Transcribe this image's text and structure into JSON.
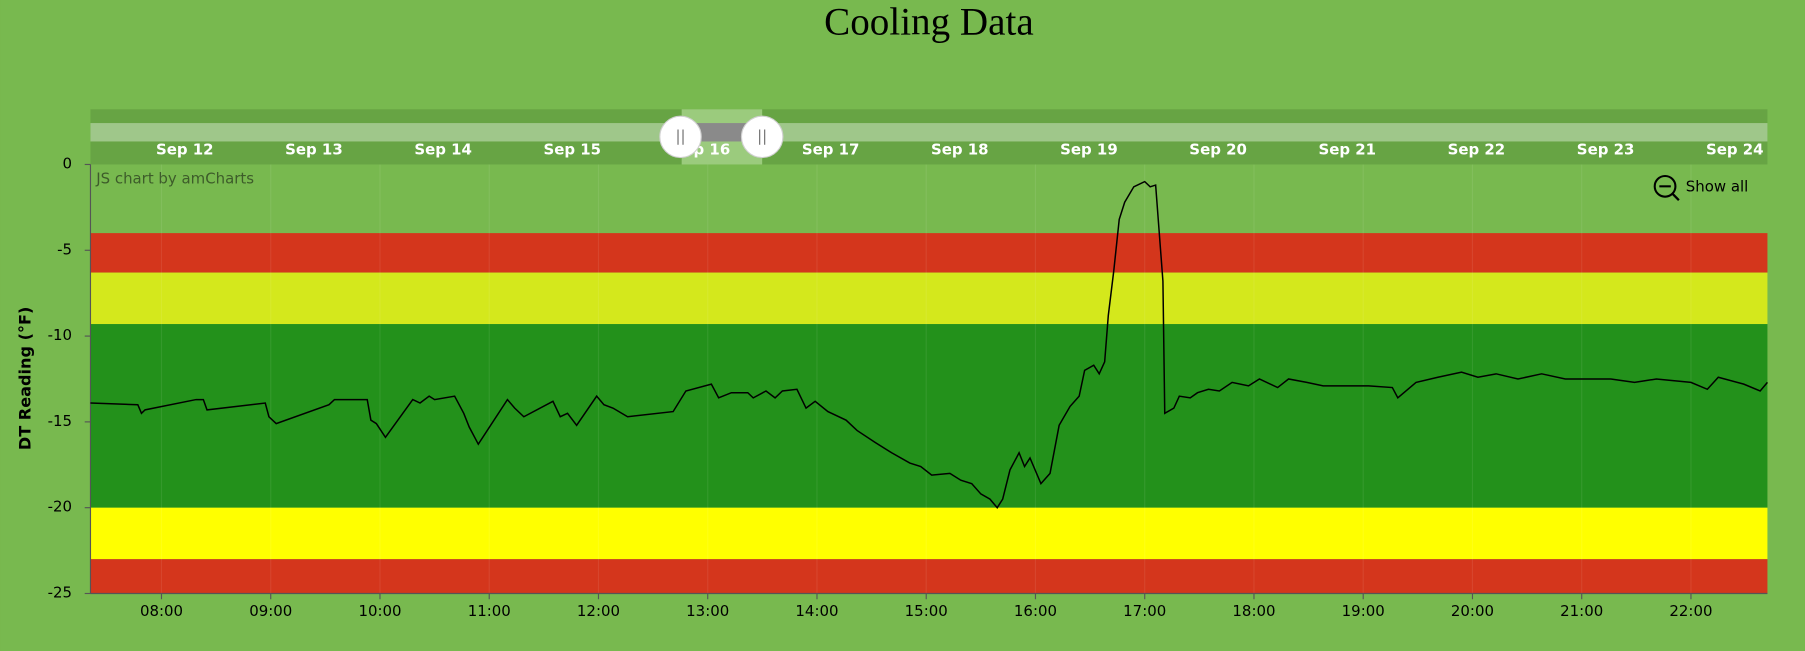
{
  "chart_data": {
    "type": "line",
    "title": "Cooling Data",
    "y_label": "DT Reading (°F)",
    "credit": "JS chart by amCharts",
    "zoom_button": "Show all",
    "scrollbar": {
      "labels": [
        "Sep 12",
        "Sep 13",
        "Sep 14",
        "Sep 15",
        "Sep 16",
        "Sep 17",
        "Sep 18",
        "Sep 19",
        "Sep 20",
        "Sep 21",
        "Sep 22",
        "Sep 23",
        "Sep 24"
      ],
      "handle": "||"
    },
    "color": "#000000",
    "x": [
      "07:21",
      "07:47",
      "07:49",
      "07:51",
      "08:19",
      "08:23",
      "08:25",
      "08:57",
      "08:59",
      "09:03",
      "09:32",
      "09:35",
      "09:53",
      "09:55",
      "09:58",
      "10:03",
      "10:18",
      "10:22",
      "10:27",
      "10:30",
      "10:41",
      "10:46",
      "10:49",
      "10:54",
      "11:10",
      "11:14",
      "11:19",
      "11:35",
      "11:39",
      "11:43",
      "11:48",
      "11:59",
      "12:03",
      "12:08",
      "12:16",
      "12:41",
      "12:48",
      "13:02",
      "13:06",
      "13:13",
      "13:22",
      "13:25",
      "13:32",
      "13:37",
      "13:41",
      "13:49",
      "13:54",
      "13:59",
      "14:06",
      "14:16",
      "14:22",
      "14:32",
      "14:41",
      "14:51",
      "14:57",
      "15:03",
      "15:13",
      "15:19",
      "15:25",
      "15:30",
      "15:35",
      "15:39",
      "15:42",
      "15:46",
      "15:51",
      "15:54",
      "15:57",
      "16:03",
      "16:08",
      "16:13",
      "16:19",
      "16:24",
      "16:27",
      "16:32",
      "16:35",
      "16:38",
      "16:40",
      "16:43",
      "16:46",
      "16:49",
      "16:54",
      "17:00",
      "17:03",
      "17:06",
      "17:10",
      "17:11",
      "17:16",
      "17:19",
      "17:25",
      "17:29",
      "17:35",
      "17:41",
      "17:48",
      "17:57",
      "18:03",
      "18:13",
      "18:19",
      "18:29",
      "18:38",
      "18:51",
      "19:03",
      "19:16",
      "19:19",
      "19:29",
      "19:41",
      "19:54",
      "20:03",
      "20:13",
      "20:25",
      "20:38",
      "20:51",
      "21:03",
      "21:16",
      "21:29",
      "21:41",
      "22:00",
      "22:09",
      "22:15",
      "22:29",
      "22:38",
      "22:42"
    ],
    "values": [
      -13.9,
      -14.0,
      -14.5,
      -14.3,
      -13.7,
      -13.7,
      -14.3,
      -13.9,
      -14.7,
      -15.1,
      -14.0,
      -13.7,
      -13.7,
      -14.9,
      -15.1,
      -15.9,
      -13.7,
      -13.9,
      -13.5,
      -13.7,
      -13.5,
      -14.5,
      -15.3,
      -16.3,
      -13.7,
      -14.2,
      -14.7,
      -13.8,
      -14.7,
      -14.5,
      -15.2,
      -13.5,
      -14.0,
      -14.2,
      -14.7,
      -14.4,
      -13.2,
      -12.8,
      -13.6,
      -13.3,
      -13.3,
      -13.6,
      -13.2,
      -13.6,
      -13.2,
      -13.1,
      -14.2,
      -13.8,
      -14.4,
      -14.9,
      -15.5,
      -16.2,
      -16.8,
      -17.4,
      -17.6,
      -18.1,
      -18.0,
      -18.4,
      -18.6,
      -19.2,
      -19.5,
      -20.0,
      -19.5,
      -17.8,
      -16.8,
      -17.6,
      -17.1,
      -18.6,
      -18.0,
      -15.2,
      -14.1,
      -13.5,
      -12.0,
      -11.7,
      -12.2,
      -11.5,
      -8.8,
      -6.2,
      -3.2,
      -2.2,
      -1.3,
      -1.0,
      -1.3,
      -1.2,
      -6.8,
      -14.5,
      -14.2,
      -13.5,
      -13.6,
      -13.3,
      -13.1,
      -13.2,
      -12.7,
      -12.9,
      -12.5,
      -13.0,
      -12.5,
      -12.7,
      -12.9,
      -12.9,
      -12.9,
      -13.0,
      -13.6,
      -12.7,
      -12.4,
      -12.1,
      -12.4,
      -12.2,
      -12.5,
      -12.2,
      -12.5,
      -12.5,
      -12.5,
      -12.7,
      -12.5,
      -12.7,
      -13.1,
      -12.4,
      -12.8,
      -13.2,
      -12.7
    ],
    "bands": [
      {
        "from": -4,
        "to": -6.3,
        "color": "#d4361c"
      },
      {
        "from": -6.3,
        "to": -9.3,
        "color": "#d4e81c"
      },
      {
        "from": -9.3,
        "to": -20,
        "color": "#23911b"
      },
      {
        "from": -20,
        "to": -23,
        "color": "#ffff00"
      },
      {
        "from": -23,
        "to": -25,
        "color": "#d4361c"
      }
    ],
    "xlim": [
      "07:21",
      "22:42"
    ],
    "xticks": [
      "08:00",
      "09:00",
      "10:00",
      "11:00",
      "12:00",
      "13:00",
      "14:00",
      "15:00",
      "16:00",
      "17:00",
      "18:00",
      "19:00",
      "20:00",
      "21:00",
      "22:00"
    ],
    "ylim": [
      -25,
      0
    ],
    "yticks": [
      0,
      -5,
      -10,
      -15,
      -20,
      -25
    ],
    "grid": true
  }
}
